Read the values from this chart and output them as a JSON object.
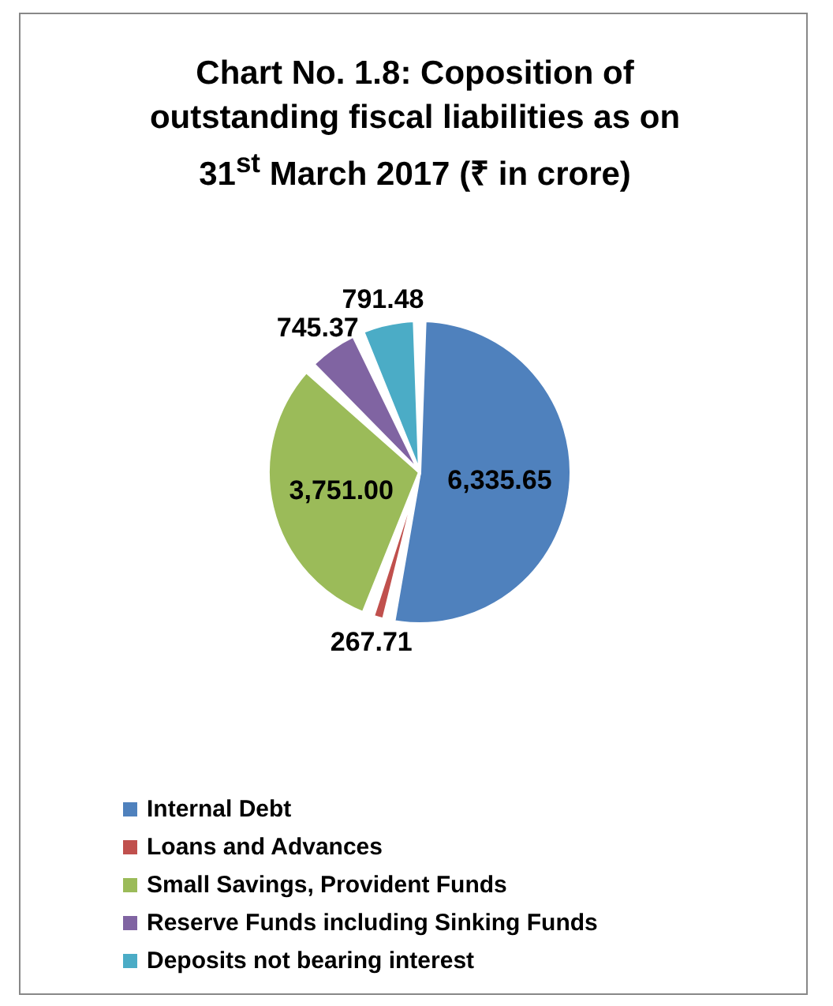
{
  "chart_data": {
    "type": "pie",
    "title": "Chart No. 1.8: Coposition of outstanding fiscal liabilities as on 31$^{st}$ March 2017 (₹ in crore)",
    "categories": [
      "Internal Debt",
      "Loans and Advances",
      "Small Savings, Provident Funds",
      "Reserve Funds including Sinking Funds",
      "Deposits not bearing interest"
    ],
    "values": [
      6335.65,
      267.71,
      3751.0,
      745.37,
      791.48
    ],
    "value_labels": [
      "6,335.65",
      "267.71",
      "3,751.00",
      "745.37",
      "791.48"
    ],
    "colors": [
      "#4f81bd",
      "#c0504d",
      "#9bbb59",
      "#8064a2",
      "#4bacc6"
    ],
    "legend": "bottom"
  }
}
